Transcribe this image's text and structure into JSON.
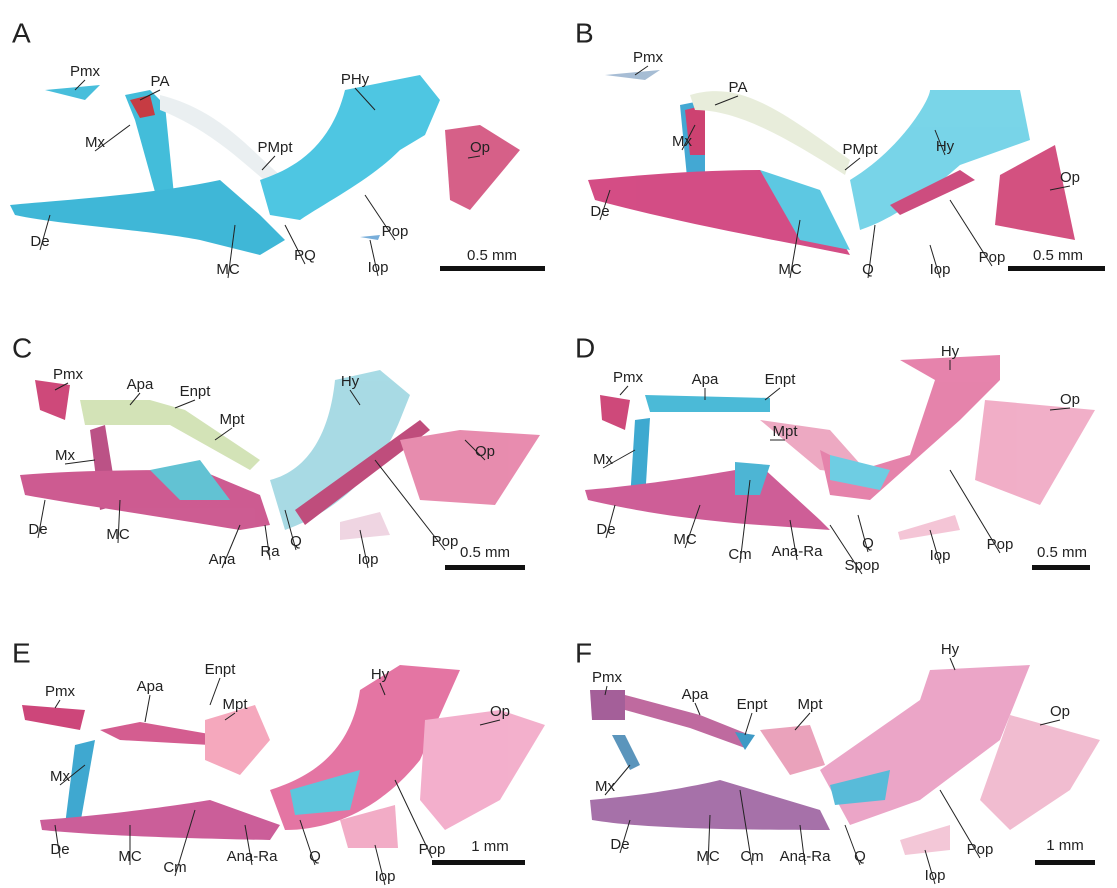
{
  "panels": [
    {
      "letter": "A",
      "labels": [
        "Pmx",
        "PA",
        "Mx",
        "PHy",
        "PMpt",
        "Op",
        "De",
        "MC",
        "PQ",
        "Pop",
        "Iop"
      ],
      "scale": "0.5 mm"
    },
    {
      "letter": "B",
      "labels": [
        "Pmx",
        "PA",
        "Mx",
        "Hy",
        "PMpt",
        "Op",
        "De",
        "MC",
        "Q",
        "Pop",
        "Iop"
      ],
      "scale": "0.5 mm"
    },
    {
      "letter": "C",
      "labels": [
        "Pmx",
        "Apa",
        "Enpt",
        "Mpt",
        "Mx",
        "Hy",
        "Op",
        "De",
        "MC",
        "Ana",
        "Ra",
        "Q",
        "Pop",
        "Iop"
      ],
      "scale": "0.5 mm"
    },
    {
      "letter": "D",
      "labels": [
        "Pmx",
        "Apa",
        "Enpt",
        "Mpt",
        "Mx",
        "Hy",
        "Op",
        "De",
        "MC",
        "Cm",
        "Ana-Ra",
        "Q",
        "Spop",
        "Pop",
        "Iop"
      ],
      "scale": "0.5 mm"
    },
    {
      "letter": "E",
      "labels": [
        "Pmx",
        "Apa",
        "Enpt",
        "Mpt",
        "Mx",
        "Hy",
        "Op",
        "De",
        "MC",
        "Cm",
        "Ana-Ra",
        "Q",
        "Pop",
        "Iop"
      ],
      "scale": "1 mm"
    },
    {
      "letter": "F",
      "labels": [
        "Pmx",
        "Apa",
        "Enpt",
        "Mpt",
        "Mx",
        "Hy",
        "Op",
        "De",
        "MC",
        "Cm",
        "Ana-Ra",
        "Q",
        "Pop",
        "Iop"
      ],
      "scale": "1 mm"
    }
  ]
}
